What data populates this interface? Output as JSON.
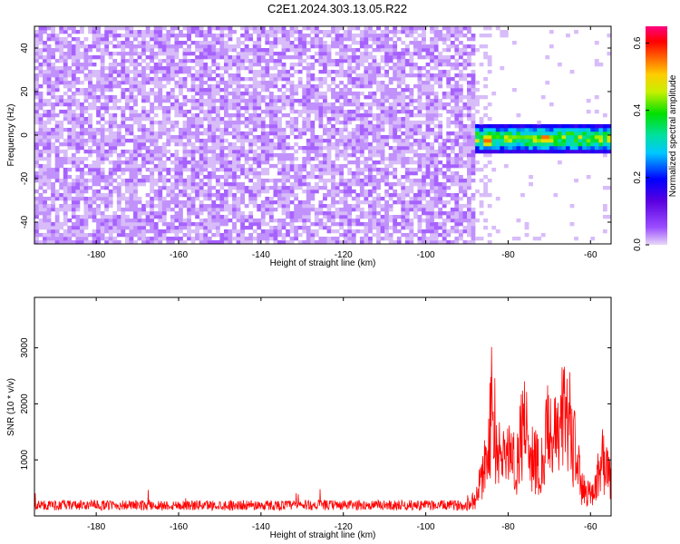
{
  "title": "C2E1.2024.303.13.05.R22",
  "chart_data": [
    {
      "type": "heatmap",
      "title": "C2E1.2024.303.13.05.R22",
      "xlabel": "Height of straight line (km)",
      "ylabel": "Frequency (Hz)",
      "xlim": [
        -195,
        -55
      ],
      "ylim": [
        -50,
        50
      ],
      "x_ticks": [
        -180,
        -160,
        -140,
        -120,
        -100,
        -80,
        -60
      ],
      "y_ticks": [
        -40,
        -20,
        0,
        20,
        40
      ],
      "colorbar": {
        "label": "Normalized spectral amplitude",
        "range": [
          0,
          0.65
        ],
        "ticks": [
          "0.0",
          "0.2",
          "0.4",
          "0.6"
        ],
        "colormap": [
          "#e8d8f8",
          "#9b4dff",
          "#5a00e0",
          "#0000ff",
          "#00c8ff",
          "#00e0a0",
          "#00e000",
          "#c8f000",
          "#ffcc00",
          "#ff6000",
          "#ff0000",
          "#ff0080"
        ]
      },
      "noise_region": {
        "x": [
          -195,
          -88
        ],
        "freq": [
          -50,
          50
        ],
        "amplitude": 0.03
      },
      "signal_band": {
        "x": [
          -93,
          -55
        ],
        "center_freq": -1.5,
        "half_width": 7,
        "amplitude_range": [
          0.1,
          0.5
        ],
        "peaks": [
          {
            "x": -85,
            "freq": -2.5,
            "amplitude": 0.6
          },
          {
            "x": -71,
            "freq": -1,
            "amplitude": 0.6
          }
        ]
      },
      "grid": false
    },
    {
      "type": "line",
      "xlabel": "Height of straight line (km)",
      "ylabel": "SNR (10 * v/v)",
      "xlim": [
        -195,
        -55
      ],
      "ylim": [
        0,
        3900
      ],
      "x_ticks": [
        -180,
        -160,
        -140,
        -120,
        -100,
        -80,
        -60
      ],
      "y_ticks": [
        1000,
        2000,
        3000
      ],
      "color": "#ff0000",
      "baseline_level": 200,
      "anchors": {
        "x": [
          -195,
          -150,
          -120,
          -100,
          -92,
          -88,
          -85,
          -84,
          -82,
          -80,
          -78,
          -76,
          -74,
          -72,
          -70,
          -68,
          -66,
          -64,
          -62,
          -60,
          -58,
          -57,
          -55
        ],
        "y": [
          220,
          220,
          230,
          240,
          270,
          400,
          1600,
          2800,
          1500,
          1700,
          1400,
          2500,
          1600,
          1200,
          2400,
          1900,
          3000,
          1800,
          700,
          600,
          1100,
          1500,
          900
        ]
      },
      "grid": false
    }
  ]
}
